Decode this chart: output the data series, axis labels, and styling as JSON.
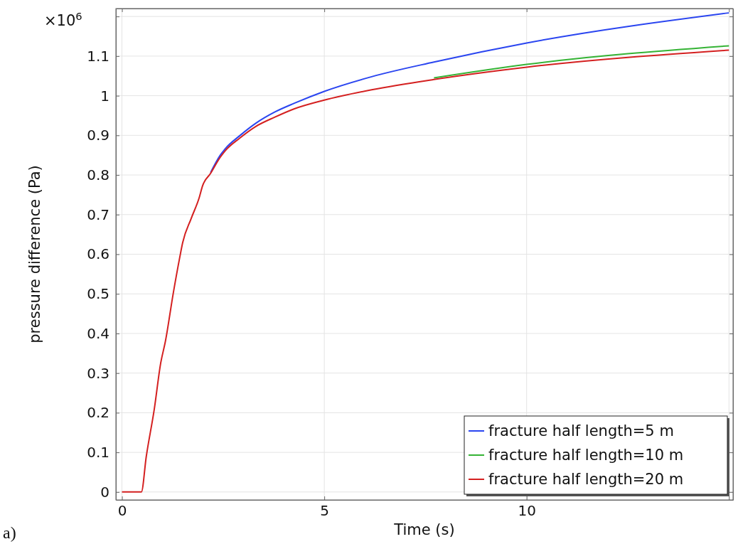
{
  "chart_data": {
    "type": "line",
    "xlabel": "Time (s)",
    "ylabel": "pressure difference (Pa)",
    "annotations": [
      "×10$^{6}$",
      "a)"
    ],
    "xlim": [
      -0.15,
      15.1
    ],
    "ylim": [
      -0.02,
      1.22
    ],
    "xticks": [
      0,
      5,
      10,
      {
        "value": 15,
        "label": null
      }
    ],
    "yticks": [
      0,
      0.1,
      0.2,
      0.3,
      0.4,
      0.5,
      0.6,
      0.7,
      0.8,
      0.9,
      1,
      1.1,
      {
        "value": 1.2,
        "label": null
      }
    ],
    "grid": true,
    "legend": "bottom right",
    "line_style": "solid",
    "marker": "none",
    "x": [
      0,
      0.48,
      0.6,
      0.8,
      0.955,
      1.075,
      1.27,
      1.43,
      1.5,
      1.71,
      1.91,
      1.99,
      2.19,
      2.43,
      2.55,
      2.91,
      3.3,
      3.78,
      4.26,
      5,
      6.17,
      7.71,
      10,
      15
    ],
    "series": [
      {
        "name": "fracture half length=5 m",
        "color": "#2a45f0",
        "values": [
          null,
          null,
          null,
          null,
          null,
          null,
          null,
          null,
          null,
          null,
          null,
          null,
          0.806,
          0.85,
          0.866,
          0.899,
          0.93,
          0.959,
          0.981,
          1.011,
          1.048,
          1.085,
          1.133,
          1.209
        ]
      },
      {
        "name": "fracture half length=10 m",
        "color": "#35b335",
        "values": [
          null,
          null,
          null,
          null,
          null,
          null,
          null,
          null,
          null,
          null,
          null,
          null,
          null,
          null,
          null,
          null,
          null,
          null,
          null,
          null,
          null,
          1.045,
          1.079,
          1.126
        ]
      },
      {
        "name": "fracture half length=20 m",
        "color": "#d42020",
        "values": [
          0,
          0,
          0.089,
          0.21,
          0.324,
          0.381,
          0.503,
          0.593,
          0.629,
          0.69,
          0.743,
          0.772,
          0.804,
          0.845,
          0.861,
          0.893,
          0.922,
          0.946,
          0.967,
          0.989,
          1.015,
          1.041,
          1.072,
          1.115
        ]
      }
    ]
  }
}
